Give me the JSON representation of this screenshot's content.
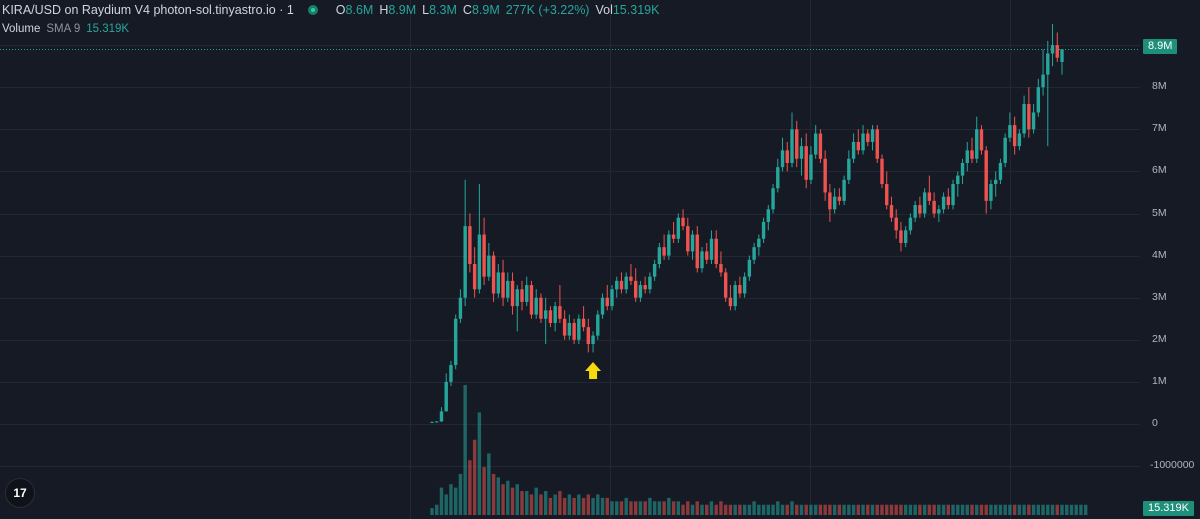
{
  "header": {
    "symbol_line": "KIRA/USD on Raydium V4 photon-sol.tinyastro.io · 1",
    "ohlc": {
      "o_label": "O",
      "o_value": "8.6M",
      "h_label": "H",
      "h_value": "8.9M",
      "l_label": "L",
      "l_value": "8.3M",
      "c_label": "C",
      "c_value": "8.9M",
      "change": "277K (+3.22%)",
      "vol_label": "Vol",
      "vol_value": "15.319K"
    }
  },
  "volume_legend": {
    "name": "Volume",
    "sma": "SMA 9",
    "value": "15.319K"
  },
  "price_axis": {
    "last_price_badge": "8.9M",
    "volume_badge": "15.319K",
    "labels": [
      "9M",
      "8M",
      "7M",
      "6M",
      "5M",
      "4M",
      "3M",
      "2M",
      "1M",
      "0",
      "-1000000"
    ],
    "values": [
      9,
      8,
      7,
      6,
      5,
      4,
      3,
      2,
      1,
      0,
      -1
    ]
  },
  "logo": {
    "text": "17"
  },
  "colors": {
    "background": "#161a25",
    "grid": "#232733",
    "up": "#26a69a",
    "down": "#ef5350",
    "arrow": "#f5d90a",
    "badge": "#1e8f7a"
  },
  "chart_data": {
    "type": "candlestick",
    "title": "KIRA/USD on Raydium V4 photon-sol.tinyastro.io · 1",
    "y_unit": "USD (M)",
    "ylim": [
      -1.5,
      10
    ],
    "grid": true,
    "last_price": 8.9,
    "annotation": {
      "type": "up-arrow",
      "color": "#f5d90a",
      "at_candle_index": 34
    },
    "candles": [
      [
        0.05,
        0.06,
        0.04,
        0.05
      ],
      [
        0.05,
        0.07,
        0.04,
        0.06
      ],
      [
        0.06,
        0.4,
        0.05,
        0.3
      ],
      [
        0.3,
        1.2,
        0.3,
        1.0
      ],
      [
        1.0,
        1.5,
        0.9,
        1.4
      ],
      [
        1.4,
        2.6,
        1.3,
        2.5
      ],
      [
        2.5,
        3.2,
        2.4,
        3.0
      ],
      [
        3.0,
        5.8,
        2.8,
        4.7
      ],
      [
        4.7,
        5.0,
        3.6,
        3.8
      ],
      [
        3.8,
        4.2,
        3.0,
        3.2
      ],
      [
        3.2,
        5.7,
        3.1,
        4.5
      ],
      [
        4.5,
        4.9,
        3.3,
        3.5
      ],
      [
        3.5,
        4.3,
        3.4,
        4.0
      ],
      [
        4.0,
        4.1,
        2.9,
        3.1
      ],
      [
        3.1,
        3.8,
        3.0,
        3.6
      ],
      [
        3.6,
        3.9,
        2.8,
        3.0
      ],
      [
        3.0,
        3.6,
        2.9,
        3.4
      ],
      [
        3.4,
        3.6,
        2.6,
        2.8
      ],
      [
        2.8,
        3.3,
        2.2,
        3.2
      ],
      [
        3.2,
        3.4,
        2.7,
        2.9
      ],
      [
        2.9,
        3.5,
        2.8,
        3.3
      ],
      [
        3.3,
        3.4,
        2.5,
        2.6
      ],
      [
        2.6,
        3.2,
        2.5,
        3.0
      ],
      [
        3.0,
        3.1,
        2.4,
        2.5
      ],
      [
        2.5,
        3.0,
        1.9,
        2.7
      ],
      [
        2.7,
        2.8,
        2.3,
        2.4
      ],
      [
        2.4,
        2.9,
        2.2,
        2.8
      ],
      [
        2.8,
        3.3,
        2.4,
        2.5
      ],
      [
        2.5,
        2.7,
        2.0,
        2.1
      ],
      [
        2.1,
        2.6,
        2.0,
        2.4
      ],
      [
        2.4,
        2.5,
        1.9,
        2.0
      ],
      [
        2.0,
        2.6,
        1.9,
        2.5
      ],
      [
        2.5,
        2.8,
        2.2,
        2.3
      ],
      [
        2.3,
        2.5,
        1.7,
        1.9
      ],
      [
        1.9,
        2.2,
        1.7,
        2.1
      ],
      [
        2.1,
        2.7,
        2.0,
        2.6
      ],
      [
        2.6,
        3.1,
        2.5,
        3.0
      ],
      [
        3.0,
        3.3,
        2.7,
        2.8
      ],
      [
        2.8,
        3.3,
        2.7,
        3.2
      ],
      [
        3.2,
        3.5,
        3.0,
        3.4
      ],
      [
        3.4,
        3.6,
        3.1,
        3.2
      ],
      [
        3.2,
        3.6,
        3.1,
        3.5
      ],
      [
        3.5,
        3.8,
        3.3,
        3.4
      ],
      [
        3.4,
        3.7,
        2.9,
        3.0
      ],
      [
        3.0,
        3.4,
        2.9,
        3.3
      ],
      [
        3.3,
        3.5,
        3.1,
        3.2
      ],
      [
        3.2,
        3.6,
        3.1,
        3.5
      ],
      [
        3.5,
        3.9,
        3.4,
        3.8
      ],
      [
        3.8,
        4.3,
        3.7,
        4.2
      ],
      [
        4.2,
        4.5,
        3.9,
        4.0
      ],
      [
        4.0,
        4.6,
        3.9,
        4.5
      ],
      [
        4.5,
        4.8,
        4.3,
        4.4
      ],
      [
        4.4,
        5.0,
        4.3,
        4.9
      ],
      [
        4.9,
        5.1,
        4.6,
        4.7
      ],
      [
        4.7,
        4.9,
        4.0,
        4.1
      ],
      [
        4.1,
        4.6,
        3.9,
        4.5
      ],
      [
        4.5,
        4.7,
        3.6,
        3.7
      ],
      [
        3.7,
        4.2,
        3.6,
        4.1
      ],
      [
        4.1,
        4.3,
        3.8,
        3.9
      ],
      [
        3.9,
        4.6,
        3.8,
        4.4
      ],
      [
        4.4,
        4.6,
        3.7,
        3.8
      ],
      [
        3.8,
        4.1,
        3.5,
        3.6
      ],
      [
        3.6,
        3.7,
        2.9,
        3.0
      ],
      [
        3.0,
        3.3,
        2.7,
        2.8
      ],
      [
        2.8,
        3.4,
        2.7,
        3.3
      ],
      [
        3.3,
        3.5,
        3.0,
        3.1
      ],
      [
        3.1,
        3.6,
        3.0,
        3.5
      ],
      [
        3.5,
        4.0,
        3.4,
        3.9
      ],
      [
        3.9,
        4.3,
        3.8,
        4.2
      ],
      [
        4.2,
        4.5,
        4.0,
        4.4
      ],
      [
        4.4,
        4.9,
        4.3,
        4.8
      ],
      [
        4.8,
        5.2,
        4.6,
        5.1
      ],
      [
        5.1,
        5.7,
        5.0,
        5.6
      ],
      [
        5.6,
        6.3,
        5.5,
        6.1
      ],
      [
        6.1,
        6.8,
        6.0,
        6.5
      ],
      [
        6.5,
        6.7,
        6.0,
        6.2
      ],
      [
        6.2,
        7.4,
        6.1,
        7.0
      ],
      [
        7.0,
        7.2,
        6.1,
        6.3
      ],
      [
        6.3,
        6.8,
        5.9,
        6.6
      ],
      [
        6.6,
        6.9,
        5.6,
        5.8
      ],
      [
        5.8,
        6.6,
        5.7,
        6.4
      ],
      [
        6.4,
        7.1,
        6.3,
        6.9
      ],
      [
        6.9,
        7.0,
        6.2,
        6.3
      ],
      [
        6.3,
        6.5,
        5.3,
        5.5
      ],
      [
        5.5,
        5.7,
        4.8,
        5.1
      ],
      [
        5.1,
        5.6,
        5.0,
        5.4
      ],
      [
        5.4,
        5.6,
        5.2,
        5.3
      ],
      [
        5.3,
        5.9,
        5.2,
        5.8
      ],
      [
        5.8,
        6.5,
        5.7,
        6.3
      ],
      [
        6.3,
        6.9,
        6.2,
        6.7
      ],
      [
        6.7,
        7.0,
        6.4,
        6.5
      ],
      [
        6.5,
        7.1,
        6.4,
        6.9
      ],
      [
        6.9,
        7.0,
        6.6,
        6.7
      ],
      [
        6.7,
        7.1,
        6.5,
        7.0
      ],
      [
        7.0,
        7.1,
        6.2,
        6.3
      ],
      [
        6.3,
        6.4,
        5.6,
        5.7
      ],
      [
        5.7,
        6.0,
        5.1,
        5.2
      ],
      [
        5.2,
        5.4,
        4.8,
        4.9
      ],
      [
        4.9,
        5.1,
        4.4,
        4.6
      ],
      [
        4.6,
        4.8,
        4.1,
        4.3
      ],
      [
        4.3,
        4.7,
        4.2,
        4.6
      ],
      [
        4.6,
        5.0,
        4.5,
        4.9
      ],
      [
        4.9,
        5.3,
        4.8,
        5.2
      ],
      [
        5.2,
        5.4,
        4.9,
        5.0
      ],
      [
        5.0,
        5.6,
        4.9,
        5.5
      ],
      [
        5.5,
        5.9,
        5.2,
        5.3
      ],
      [
        5.3,
        5.5,
        4.9,
        5.0
      ],
      [
        5.0,
        5.2,
        4.8,
        5.1
      ],
      [
        5.1,
        5.5,
        5.0,
        5.4
      ],
      [
        5.4,
        5.6,
        5.1,
        5.2
      ],
      [
        5.2,
        5.8,
        5.1,
        5.7
      ],
      [
        5.7,
        6.0,
        5.4,
        5.9
      ],
      [
        5.9,
        6.3,
        5.7,
        6.2
      ],
      [
        6.2,
        6.7,
        6.0,
        6.5
      ],
      [
        6.5,
        6.8,
        6.2,
        6.3
      ],
      [
        6.3,
        7.3,
        6.2,
        7.0
      ],
      [
        7.0,
        7.1,
        6.4,
        6.5
      ],
      [
        6.5,
        6.6,
        5.0,
        5.3
      ],
      [
        5.3,
        5.8,
        5.1,
        5.7
      ],
      [
        5.7,
        6.0,
        5.4,
        5.8
      ],
      [
        5.8,
        6.3,
        5.7,
        6.2
      ],
      [
        6.2,
        6.9,
        6.1,
        6.8
      ],
      [
        6.8,
        7.4,
        6.7,
        7.1
      ],
      [
        7.1,
        7.3,
        6.4,
        6.6
      ],
      [
        6.6,
        7.0,
        6.5,
        6.9
      ],
      [
        6.9,
        7.8,
        6.8,
        7.6
      ],
      [
        7.6,
        8.0,
        6.8,
        7.0
      ],
      [
        7.0,
        7.6,
        6.9,
        7.4
      ],
      [
        7.4,
        8.2,
        7.3,
        8.0
      ],
      [
        8.0,
        8.9,
        7.8,
        8.3
      ],
      [
        8.3,
        9.1,
        6.6,
        8.8
      ],
      [
        8.8,
        9.5,
        8.5,
        9.0
      ],
      [
        9.0,
        9.3,
        8.6,
        8.7
      ],
      [
        8.6,
        8.9,
        8.3,
        8.9
      ]
    ],
    "volume": [
      2,
      3,
      8,
      6,
      9,
      8,
      12,
      38,
      16,
      22,
      30,
      14,
      18,
      12,
      11,
      9,
      10,
      8,
      9,
      7,
      7,
      6,
      8,
      6,
      7,
      5,
      6,
      7,
      5,
      6,
      5,
      6,
      5,
      6,
      5,
      6,
      5,
      5,
      4,
      4,
      4,
      5,
      4,
      4,
      4,
      4,
      5,
      4,
      4,
      4,
      5,
      4,
      4,
      3,
      4,
      3,
      4,
      3,
      3,
      4,
      3,
      4,
      3,
      3,
      3,
      3,
      3,
      3,
      4,
      3,
      3,
      3,
      3,
      4,
      3,
      3,
      4,
      3,
      3,
      3,
      3,
      3,
      3,
      3,
      3,
      3,
      3,
      3,
      3,
      3,
      3,
      3,
      3,
      3,
      3,
      3,
      3,
      3,
      3,
      3,
      3,
      3,
      3,
      3,
      3,
      3,
      3,
      3,
      3,
      3,
      3,
      3,
      3,
      3,
      3,
      3,
      3,
      3,
      3,
      3,
      3,
      3,
      3,
      3,
      3,
      3,
      3,
      3,
      3,
      3,
      3,
      3,
      3,
      3,
      3,
      3,
      3,
      3,
      3
    ]
  }
}
